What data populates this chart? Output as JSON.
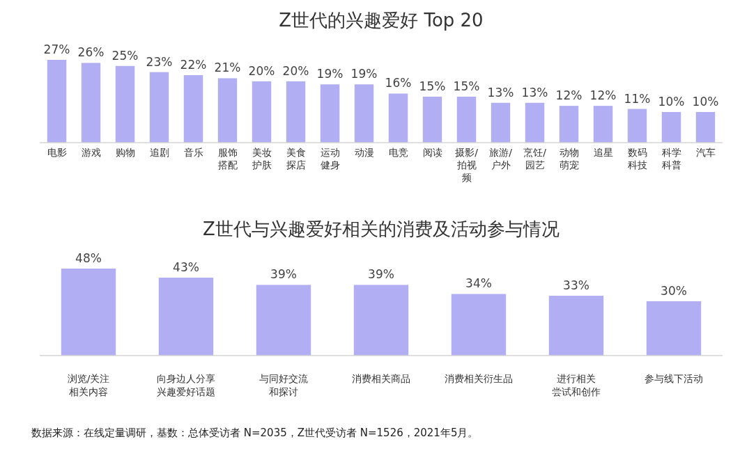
{
  "chart_data": [
    {
      "type": "bar",
      "title": "Z世代的兴趣爱好 Top 20",
      "categories": [
        "电影",
        "游戏",
        "购物",
        "追剧",
        "音乐",
        "服饰搭配",
        "美妆护肤",
        "美食探店",
        "运动健身",
        "动漫",
        "电竞",
        "阅读",
        "摄影/拍视频",
        "旅游/户外",
        "烹饪/园艺",
        "动物萌宠",
        "追星",
        "数码科技",
        "科学科普",
        "汽车"
      ],
      "values": [
        27,
        26,
        25,
        23,
        22,
        21,
        20,
        20,
        19,
        19,
        16,
        15,
        15,
        13,
        13,
        12,
        12,
        11,
        10,
        10
      ],
      "value_labels": [
        "27%",
        "26%",
        "25%",
        "23%",
        "22%",
        "21%",
        "20%",
        "20%",
        "19%",
        "19%",
        "16%",
        "15%",
        "15%",
        "13%",
        "13%",
        "12%",
        "12%",
        "11%",
        "10%",
        "10%"
      ],
      "color": "#b1aef3"
    },
    {
      "type": "bar",
      "title": "Z世代与兴趣爱好相关的消费及活动参与情况",
      "categories": [
        "浏览/关注相关内容",
        "向身边人分享兴趣爱好话题",
        "与同好交流和探讨",
        "消费相关商品",
        "消费相关衍生品",
        "进行相关尝试和创作",
        "参与线下活动"
      ],
      "values": [
        48,
        43,
        39,
        39,
        34,
        33,
        30
      ],
      "value_labels": [
        "48%",
        "43%",
        "39%",
        "39%",
        "34%",
        "33%",
        "30%"
      ],
      "color": "#b1aef3",
      "annotations": [
        "数据来源：在线定量调研，基数：总体受访者 N=2035，Z世代受访者 N=1526，2021年5月。"
      ]
    }
  ]
}
